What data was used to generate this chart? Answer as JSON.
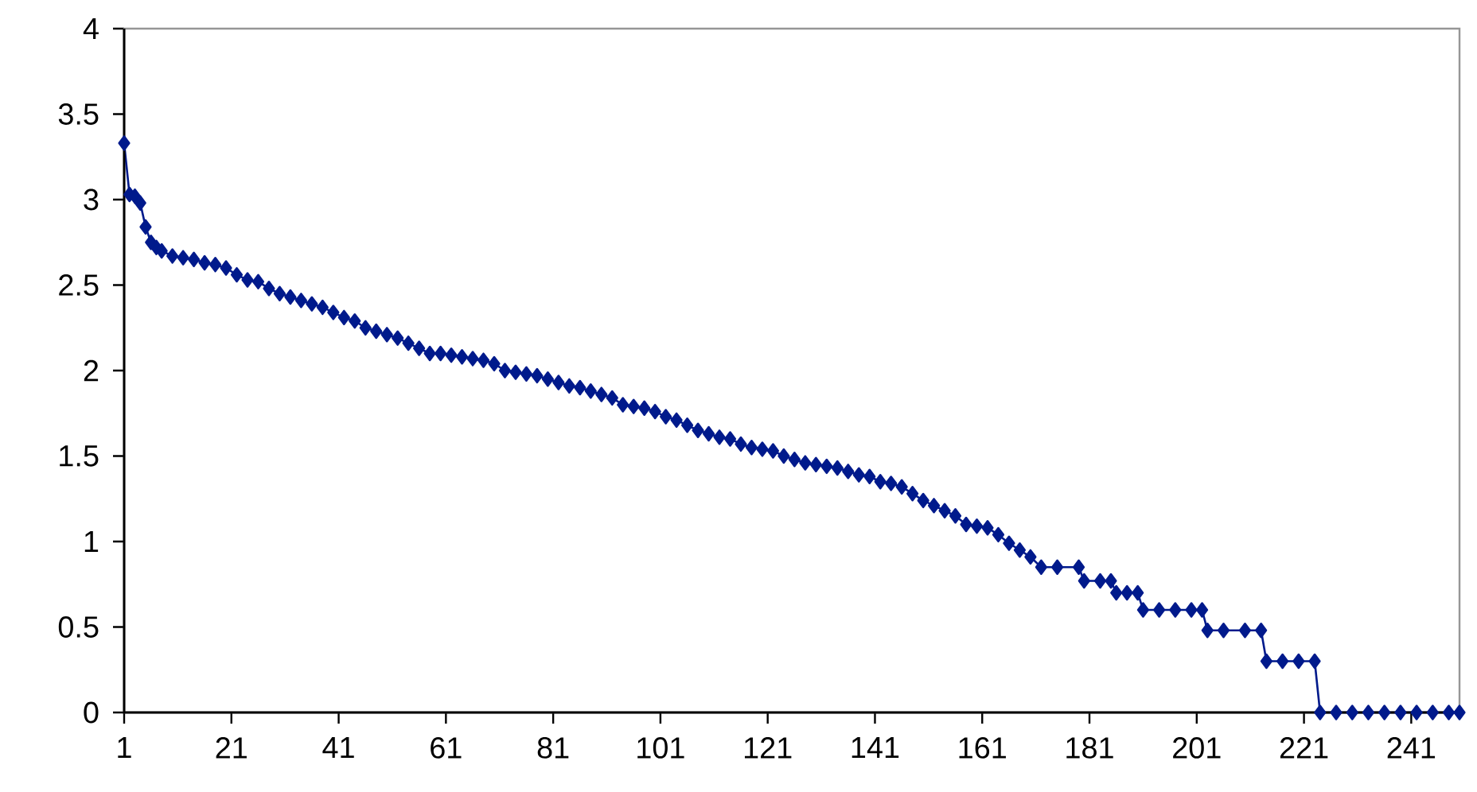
{
  "chart_data": {
    "type": "line",
    "xlim": [
      1,
      250
    ],
    "ylim": [
      0,
      4
    ],
    "xticks": [
      1,
      21,
      41,
      61,
      81,
      101,
      121,
      141,
      161,
      181,
      201,
      221,
      241
    ],
    "yticks": [
      0,
      0.5,
      1,
      1.5,
      2,
      2.5,
      3,
      3.5,
      4
    ],
    "grid": false,
    "marker": "diamond",
    "line_style": "solid",
    "series": [
      {
        "color": "#001a8c",
        "x": [
          1,
          2,
          3,
          4,
          5,
          6,
          7,
          8,
          10,
          12,
          14,
          16,
          18,
          20,
          22,
          24,
          26,
          28,
          30,
          32,
          34,
          36,
          38,
          40,
          42,
          44,
          46,
          48,
          50,
          52,
          54,
          56,
          58,
          60,
          62,
          64,
          66,
          68,
          70,
          72,
          74,
          76,
          78,
          80,
          82,
          84,
          86,
          88,
          90,
          92,
          94,
          96,
          98,
          100,
          102,
          104,
          106,
          108,
          110,
          112,
          114,
          116,
          118,
          120,
          122,
          124,
          126,
          128,
          130,
          132,
          134,
          136,
          138,
          140,
          142,
          144,
          146,
          148,
          150,
          152,
          154,
          156,
          158,
          160,
          162,
          164,
          166,
          168,
          170,
          172,
          175,
          179,
          180,
          183,
          185,
          186,
          188,
          190,
          191,
          194,
          197,
          200,
          202,
          203,
          206,
          210,
          213,
          214,
          217,
          220,
          223,
          224,
          227,
          230,
          233,
          236,
          239,
          242,
          245,
          248,
          250
        ],
        "values": [
          3.33,
          3.03,
          3.02,
          2.98,
          2.84,
          2.75,
          2.72,
          2.7,
          2.67,
          2.66,
          2.65,
          2.63,
          2.62,
          2.6,
          2.56,
          2.53,
          2.52,
          2.48,
          2.45,
          2.43,
          2.41,
          2.39,
          2.37,
          2.34,
          2.31,
          2.29,
          2.25,
          2.23,
          2.21,
          2.19,
          2.16,
          2.13,
          2.1,
          2.1,
          2.09,
          2.08,
          2.07,
          2.06,
          2.04,
          2.0,
          1.99,
          1.98,
          1.97,
          1.95,
          1.93,
          1.91,
          1.9,
          1.88,
          1.86,
          1.84,
          1.8,
          1.79,
          1.78,
          1.76,
          1.73,
          1.71,
          1.68,
          1.65,
          1.63,
          1.61,
          1.6,
          1.57,
          1.55,
          1.54,
          1.53,
          1.5,
          1.48,
          1.46,
          1.45,
          1.44,
          1.43,
          1.41,
          1.39,
          1.38,
          1.35,
          1.34,
          1.32,
          1.28,
          1.24,
          1.21,
          1.18,
          1.15,
          1.1,
          1.09,
          1.08,
          1.04,
          0.99,
          0.95,
          0.91,
          0.85,
          0.85,
          0.85,
          0.77,
          0.77,
          0.77,
          0.7,
          0.7,
          0.7,
          0.6,
          0.6,
          0.6,
          0.6,
          0.6,
          0.48,
          0.48,
          0.48,
          0.48,
          0.3,
          0.3,
          0.3,
          0.3,
          0,
          0,
          0,
          0,
          0,
          0,
          0,
          0,
          0,
          0
        ]
      }
    ]
  }
}
